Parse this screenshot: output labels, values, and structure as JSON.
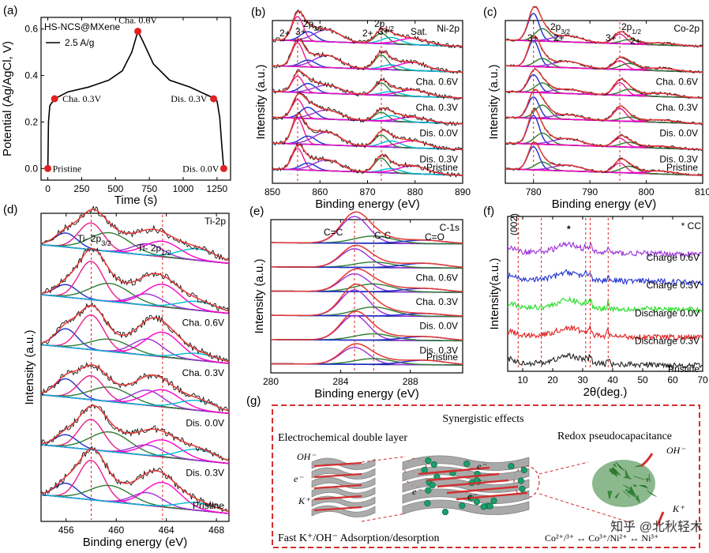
{
  "chart_data": [
    {
      "panel": "(a)",
      "type": "line",
      "title": "HS-NCS@MXene",
      "legend": "2.5 A/g",
      "xlabel": "Time (s)",
      "ylabel": "Potential (Ag/AgCl, V)",
      "xlim": [
        -50,
        1350
      ],
      "ylim": [
        -0.05,
        0.65
      ],
      "xticks": [
        "0",
        "250",
        "500",
        "750",
        "1000",
        "1250"
      ],
      "yticks": [
        "0.0",
        "0.2",
        "0.4",
        "0.6"
      ],
      "curve": [
        [
          0,
          0
        ],
        [
          5,
          0.2
        ],
        [
          15,
          0.27
        ],
        [
          50,
          0.3
        ],
        [
          150,
          0.33
        ],
        [
          300,
          0.35
        ],
        [
          450,
          0.38
        ],
        [
          550,
          0.42
        ],
        [
          620,
          0.5
        ],
        [
          665,
          0.59
        ],
        [
          700,
          0.55
        ],
        [
          780,
          0.45
        ],
        [
          900,
          0.38
        ],
        [
          1050,
          0.35
        ],
        [
          1200,
          0.31
        ],
        [
          1250,
          0.29
        ],
        [
          1270,
          0.22
        ],
        [
          1285,
          0.1
        ],
        [
          1300,
          0
        ]
      ],
      "markers": [
        {
          "x": 0,
          "y": 0,
          "label": "Pristine"
        },
        {
          "x": 50,
          "y": 0.3,
          "label": "Cha. 0.3V"
        },
        {
          "x": 665,
          "y": 0.59,
          "label": "Cha. 0.6V"
        },
        {
          "x": 1225,
          "y": 0.3,
          "label": "Dis. 0.3V"
        },
        {
          "x": 1300,
          "y": 0,
          "label": "Dis. 0.0V"
        }
      ]
    },
    {
      "panel": "(b)",
      "type": "line",
      "title": "Ni-2p",
      "xlabel": "Binding energy (eV)",
      "ylabel": "Intensity (a.u.)",
      "xlim": [
        850,
        890
      ],
      "xticks": [
        "850",
        "860",
        "870",
        "880",
        "890"
      ],
      "peak_labels": [
        "2+",
        "3+",
        "2p3/2",
        "2+",
        "3+",
        "2p1/2",
        "Sat."
      ],
      "traces": [
        "Cha. 0.6V",
        "Cha. 0.3V",
        "Dis. 0.0V",
        "Dis. 0.3V",
        "Pristine"
      ],
      "dashed_x": [
        855.3,
        872.9
      ]
    },
    {
      "panel": "(c)",
      "type": "line",
      "title": "Co-2p",
      "xlabel": "Binding energy (eV)",
      "ylabel": "Intensity (a.u.)",
      "xlim": [
        775,
        810
      ],
      "xticks": [
        "780",
        "790",
        "800",
        "810"
      ],
      "peak_labels": [
        "3+",
        "2p3/2",
        "2+",
        "3+",
        "2p1/2",
        "2+"
      ],
      "traces": [
        "Cha. 0.6V",
        "Cha. 0.3V",
        "Dis. 0.0V",
        "Dis. 0.3V",
        "Pristine"
      ],
      "dashed_x": [
        780.0,
        795.3
      ]
    },
    {
      "panel": "(d)",
      "type": "line",
      "title": "Ti-2p",
      "xlabel": "Binding energy (eV)",
      "ylabel": "Intensity (a.u.)",
      "xlim": [
        454,
        469
      ],
      "xticks": [
        "456",
        "460",
        "464",
        "468"
      ],
      "peak_labels": [
        "Ti- 2p3/2",
        "Ti- 2p1/2"
      ],
      "traces": [
        "Cha. 0.6V",
        "Cha. 0.3V",
        "Dis. 0.0V",
        "Dis. 0.3V",
        "Pristine"
      ],
      "dashed_x": [
        458.0,
        463.7
      ]
    },
    {
      "panel": "(e)",
      "type": "line",
      "title": "C-1s",
      "xlabel": "Binding energy (eV)",
      "ylabel": "Intensity (a.u.)",
      "xlim": [
        280,
        291
      ],
      "xticks": [
        "280",
        "284",
        "288"
      ],
      "peak_labels": [
        "C=C",
        "C-C",
        "C=O"
      ],
      "traces": [
        "Cha. 0.6V",
        "Cha. 0.3V",
        "Dis. 0.0V",
        "Dis. 0.3V",
        "Pristine"
      ],
      "dashed_x": [
        284.8,
        285.9
      ]
    },
    {
      "panel": "(f)",
      "type": "line",
      "xlabel": "2θ(deg.)",
      "ylabel": "Intensity(a.u.)",
      "xlim": [
        5,
        70
      ],
      "xticks": [
        "10",
        "20",
        "30",
        "40",
        "50",
        "60",
        "70"
      ],
      "annotations": [
        "(002)",
        "*",
        "* CC"
      ],
      "series": [
        {
          "name": "Charge 0.6V",
          "color": "#9b30d9"
        },
        {
          "name": "Charge 0.3V",
          "color": "#1f2fd0"
        },
        {
          "name": "Discharge 0.0V",
          "color": "#22dd22"
        },
        {
          "name": "Discharge 0.3V",
          "color": "#e02020"
        },
        {
          "name": "Pristine",
          "color": "#222222"
        }
      ],
      "dashed_x": [
        8.5,
        16.2,
        31.0,
        32.5,
        38.5
      ]
    }
  ],
  "panel_g": {
    "label": "(g)",
    "title": "Synergistic effects",
    "left_title": "Electrochemical double layer",
    "right_title": "Redox pseudocapacitance",
    "bottom_left": "Fast K⁺/OH⁻ Adsorption/desorption",
    "bottom_right": "Co²⁺/³⁺ ↔ Co³⁺/Ni²⁺ ↔ Ni³⁺",
    "ions": [
      "OH⁻",
      "e⁻",
      "K⁺",
      "e⁻",
      "e⁻",
      "e⁻",
      "OH⁻",
      "K⁺"
    ]
  },
  "watermark": "知乎 @北秋轻木"
}
